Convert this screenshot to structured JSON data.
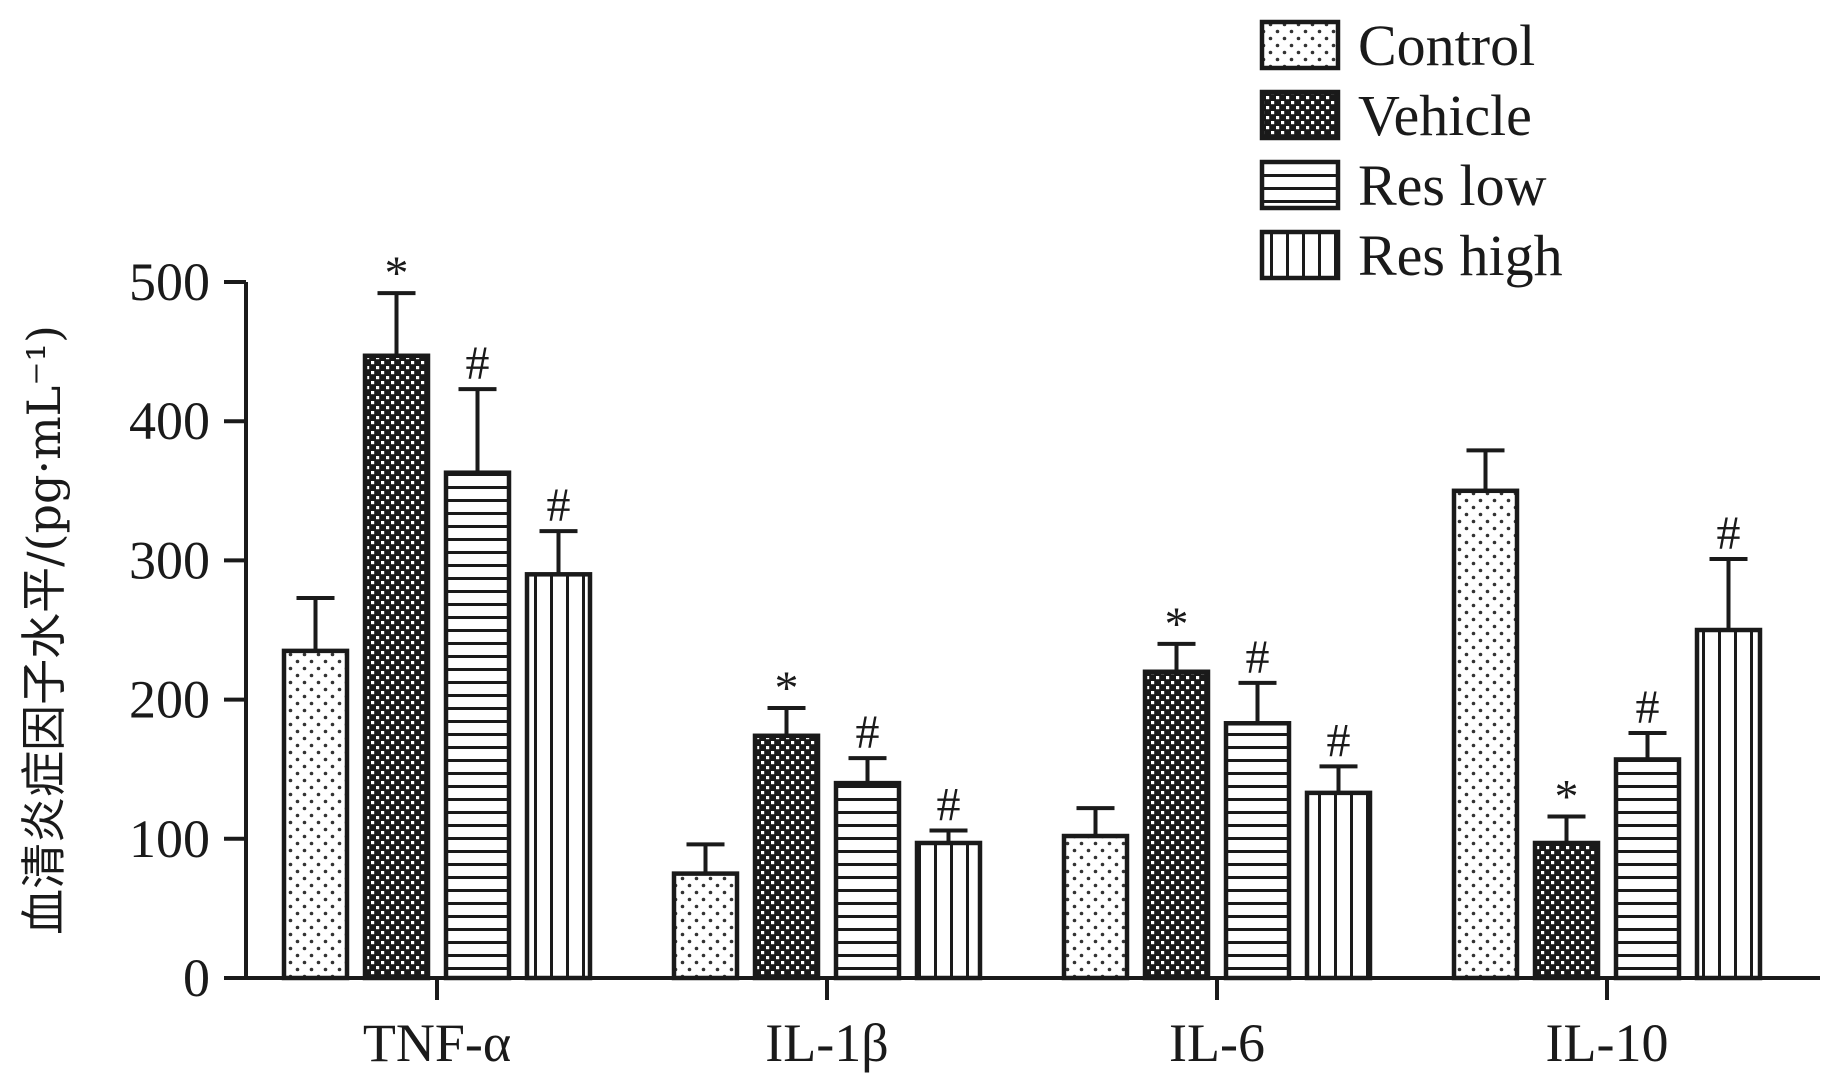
{
  "chart_data": {
    "type": "bar",
    "ylabel": "血清炎症因子水平/(pg·mL⁻¹)",
    "ylim": [
      0,
      500
    ],
    "yticks": [
      "0",
      "100",
      "200",
      "300",
      "400",
      "500"
    ],
    "ytick_values": [
      0,
      100,
      200,
      300,
      400,
      500
    ],
    "categories": [
      "TNF-α",
      "IL-1β",
      "IL-6",
      "IL-10"
    ],
    "legend_position": "top-right",
    "series": [
      {
        "name": "Control",
        "pattern": "dots",
        "values": [
          235,
          75,
          102,
          350
        ],
        "errors": [
          38,
          21,
          20,
          29
        ],
        "marks": [
          "",
          "",
          "",
          ""
        ]
      },
      {
        "name": "Vehicle",
        "pattern": "crosshatch",
        "values": [
          447,
          174,
          220,
          97
        ],
        "errors": [
          45,
          20,
          20,
          19
        ],
        "marks": [
          "*",
          "*",
          "*",
          "*"
        ]
      },
      {
        "name": "Res low",
        "pattern": "horizontal",
        "values": [
          363,
          140,
          183,
          157
        ],
        "errors": [
          60,
          18,
          29,
          19
        ],
        "marks": [
          "#",
          "#",
          "#",
          "#"
        ]
      },
      {
        "name": "Res high",
        "pattern": "vertical",
        "values": [
          290,
          97,
          133,
          250
        ],
        "errors": [
          31,
          9,
          19,
          51
        ],
        "marks": [
          "#",
          "#",
          "#",
          "#"
        ]
      }
    ]
  }
}
